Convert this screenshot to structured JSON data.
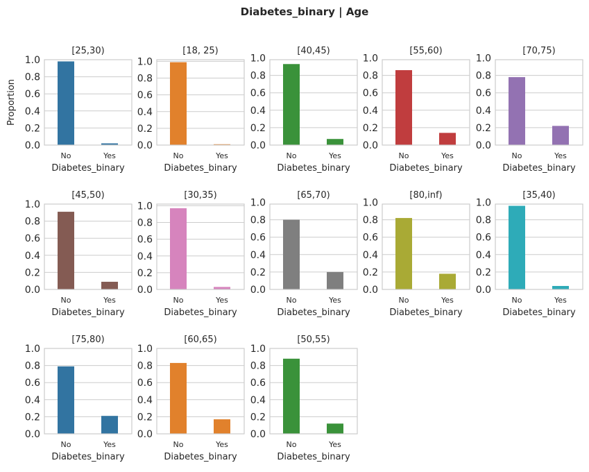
{
  "chart_data": {
    "type": "bar",
    "title": "Diabetes_binary | Age",
    "xlabel": "Diabetes_binary",
    "ylabel": "Proportion",
    "categories": [
      "No",
      "Yes"
    ],
    "yticks": [
      "0.0",
      "0.2",
      "0.4",
      "0.6",
      "0.8",
      "1.0"
    ],
    "grid": true,
    "panels": [
      {
        "title": "[25,30)",
        "values": [
          0.98,
          0.02
        ],
        "ylim": [
          0,
          1.0
        ],
        "color": "#3274a1"
      },
      {
        "title": "[18, 25)",
        "values": [
          0.99,
          0.01
        ],
        "ylim": [
          0,
          1.02
        ],
        "color": "#e1812c"
      },
      {
        "title": "[40,45)",
        "values": [
          0.93,
          0.07
        ],
        "ylim": [
          0,
          0.98
        ],
        "color": "#3a923a"
      },
      {
        "title": "[55,60)",
        "values": [
          0.86,
          0.14
        ],
        "ylim": [
          0,
          0.98
        ],
        "color": "#c03d3e"
      },
      {
        "title": "[70,75)",
        "values": [
          0.78,
          0.22
        ],
        "ylim": [
          0,
          0.98
        ],
        "color": "#9372b2"
      },
      {
        "title": "[45,50)",
        "values": [
          0.91,
          0.09
        ],
        "ylim": [
          0,
          1.0
        ],
        "color": "#845b53"
      },
      {
        "title": "[30,35)",
        "values": [
          0.97,
          0.03
        ],
        "ylim": [
          0,
          1.02
        ],
        "color": "#d684bd"
      },
      {
        "title": "[65,70)",
        "values": [
          0.8,
          0.2
        ],
        "ylim": [
          0,
          0.98
        ],
        "color": "#7f7f7f"
      },
      {
        "title": "[80,inf)",
        "values": [
          0.82,
          0.18
        ],
        "ylim": [
          0,
          0.98
        ],
        "color": "#a9aa35"
      },
      {
        "title": "[35,40)",
        "values": [
          0.96,
          0.04
        ],
        "ylim": [
          0,
          0.98
        ],
        "color": "#2eabb8"
      },
      {
        "title": "[75,80)",
        "values": [
          0.79,
          0.21
        ],
        "ylim": [
          0,
          1.0
        ],
        "color": "#3274a1"
      },
      {
        "title": "[60,65)",
        "values": [
          0.83,
          0.17
        ],
        "ylim": [
          0,
          1.0
        ],
        "color": "#e1812c"
      },
      {
        "title": "[50,55)",
        "values": [
          0.88,
          0.12
        ],
        "ylim": [
          0,
          1.0
        ],
        "color": "#3a923a"
      }
    ]
  }
}
